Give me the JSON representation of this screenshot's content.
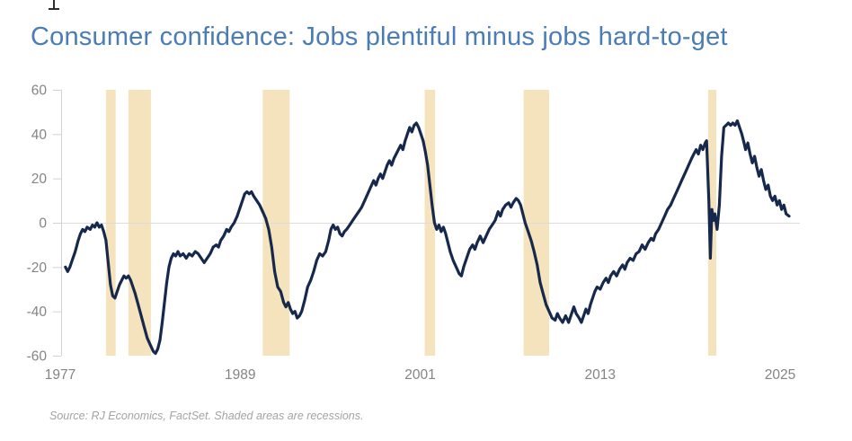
{
  "title": "Consumer confidence: Jobs plentiful minus jobs hard-to-get",
  "source_note": "Source: RJ Economics, FactSet. Shaded areas are recessions.",
  "cursor_artifact": "text-cursor",
  "colors": {
    "title": "#4a7cb5",
    "line": "#16294d",
    "recession_band": "#f4e3bc",
    "axis": "#d2d2d2",
    "zero_line": "#dcdcdc",
    "tick_label": "#828487",
    "source_text": "#a3a3a3",
    "background": "#ffffff"
  },
  "chart_data": {
    "type": "line",
    "title": "Consumer confidence: Jobs plentiful minus jobs hard-to-get",
    "xlabel": "",
    "ylabel": "",
    "x_ticks": [
      1977,
      1989,
      2001,
      2013,
      2025
    ],
    "y_ticks": [
      60,
      40,
      20,
      0,
      -20,
      -40,
      -60
    ],
    "ylim": [
      -60,
      60
    ],
    "xlim": [
      1977,
      2026
    ],
    "grid": "zero-line-only",
    "legend": "none",
    "annotation": "Shaded areas are recessions",
    "recessions": [
      [
        1980.05,
        1980.7
      ],
      [
        1981.55,
        1983.05
      ],
      [
        1990.5,
        1992.3
      ],
      [
        2001.3,
        2002.0
      ],
      [
        2007.9,
        2009.6
      ],
      [
        2020.2,
        2020.75
      ]
    ],
    "series": [
      {
        "name": "Jobs plentiful minus jobs hard-to-get",
        "points": [
          [
            1977.35,
            -20
          ],
          [
            1977.5,
            -22
          ],
          [
            1977.65,
            -20
          ],
          [
            1977.8,
            -17
          ],
          [
            1978.0,
            -13
          ],
          [
            1978.2,
            -8
          ],
          [
            1978.35,
            -5
          ],
          [
            1978.5,
            -3
          ],
          [
            1978.65,
            -4
          ],
          [
            1978.8,
            -2
          ],
          [
            1979.0,
            -3
          ],
          [
            1979.15,
            -1
          ],
          [
            1979.3,
            -2
          ],
          [
            1979.45,
            0
          ],
          [
            1979.6,
            -2
          ],
          [
            1979.75,
            -1
          ],
          [
            1979.9,
            -4
          ],
          [
            1980.05,
            -8
          ],
          [
            1980.2,
            -18
          ],
          [
            1980.35,
            -28
          ],
          [
            1980.5,
            -33
          ],
          [
            1980.65,
            -34
          ],
          [
            1980.8,
            -31
          ],
          [
            1980.95,
            -28
          ],
          [
            1981.1,
            -26
          ],
          [
            1981.25,
            -24
          ],
          [
            1981.4,
            -25
          ],
          [
            1981.55,
            -24
          ],
          [
            1981.7,
            -26
          ],
          [
            1981.85,
            -29
          ],
          [
            1982.0,
            -32
          ],
          [
            1982.2,
            -37
          ],
          [
            1982.4,
            -42
          ],
          [
            1982.6,
            -47
          ],
          [
            1982.8,
            -52
          ],
          [
            1983.0,
            -55
          ],
          [
            1983.2,
            -58
          ],
          [
            1983.35,
            -59
          ],
          [
            1983.5,
            -57
          ],
          [
            1983.65,
            -53
          ],
          [
            1983.8,
            -45
          ],
          [
            1983.95,
            -36
          ],
          [
            1984.1,
            -27
          ],
          [
            1984.25,
            -20
          ],
          [
            1984.4,
            -16
          ],
          [
            1984.55,
            -14
          ],
          [
            1984.7,
            -15
          ],
          [
            1984.85,
            -13
          ],
          [
            1985.0,
            -15
          ],
          [
            1985.2,
            -14
          ],
          [
            1985.4,
            -16
          ],
          [
            1985.6,
            -14
          ],
          [
            1985.8,
            -15
          ],
          [
            1986.0,
            -13
          ],
          [
            1986.2,
            -14
          ],
          [
            1986.4,
            -16
          ],
          [
            1986.6,
            -18
          ],
          [
            1986.8,
            -16
          ],
          [
            1987.0,
            -14
          ],
          [
            1987.2,
            -11
          ],
          [
            1987.4,
            -10
          ],
          [
            1987.55,
            -11
          ],
          [
            1987.7,
            -8
          ],
          [
            1987.9,
            -6
          ],
          [
            1988.1,
            -3
          ],
          [
            1988.25,
            -4
          ],
          [
            1988.4,
            -2
          ],
          [
            1988.6,
            0
          ],
          [
            1988.8,
            3
          ],
          [
            1989.0,
            7
          ],
          [
            1989.15,
            10
          ],
          [
            1989.3,
            13
          ],
          [
            1989.45,
            14
          ],
          [
            1989.6,
            13
          ],
          [
            1989.75,
            14
          ],
          [
            1989.9,
            12
          ],
          [
            1990.1,
            10
          ],
          [
            1990.3,
            8
          ],
          [
            1990.5,
            5
          ],
          [
            1990.7,
            2
          ],
          [
            1990.9,
            -3
          ],
          [
            1991.1,
            -11
          ],
          [
            1991.3,
            -22
          ],
          [
            1991.5,
            -29
          ],
          [
            1991.7,
            -31
          ],
          [
            1991.9,
            -36
          ],
          [
            1992.05,
            -38
          ],
          [
            1992.2,
            -36
          ],
          [
            1992.35,
            -39
          ],
          [
            1992.5,
            -41
          ],
          [
            1992.65,
            -40
          ],
          [
            1992.8,
            -43
          ],
          [
            1992.95,
            -42
          ],
          [
            1993.1,
            -40
          ],
          [
            1993.3,
            -35
          ],
          [
            1993.5,
            -29
          ],
          [
            1993.7,
            -26
          ],
          [
            1993.9,
            -22
          ],
          [
            1994.1,
            -17
          ],
          [
            1994.3,
            -14
          ],
          [
            1994.5,
            -15
          ],
          [
            1994.7,
            -13
          ],
          [
            1994.9,
            -8
          ],
          [
            1995.05,
            -3
          ],
          [
            1995.2,
            -1
          ],
          [
            1995.35,
            -3
          ],
          [
            1995.5,
            -2
          ],
          [
            1995.65,
            -5
          ],
          [
            1995.8,
            -6
          ],
          [
            1995.95,
            -4
          ],
          [
            1996.1,
            -3
          ],
          [
            1996.3,
            -1
          ],
          [
            1996.5,
            1
          ],
          [
            1996.7,
            3
          ],
          [
            1996.9,
            5
          ],
          [
            1997.1,
            7
          ],
          [
            1997.3,
            10
          ],
          [
            1997.5,
            13
          ],
          [
            1997.7,
            16
          ],
          [
            1997.9,
            19
          ],
          [
            1998.05,
            17
          ],
          [
            1998.2,
            20
          ],
          [
            1998.35,
            22
          ],
          [
            1998.5,
            20
          ],
          [
            1998.65,
            23
          ],
          [
            1998.8,
            26
          ],
          [
            1998.95,
            28
          ],
          [
            1999.1,
            26
          ],
          [
            1999.25,
            29
          ],
          [
            1999.4,
            31
          ],
          [
            1999.55,
            33
          ],
          [
            1999.7,
            35
          ],
          [
            1999.85,
            33
          ],
          [
            2000.0,
            37
          ],
          [
            2000.15,
            40
          ],
          [
            2000.3,
            43
          ],
          [
            2000.45,
            41
          ],
          [
            2000.6,
            44
          ],
          [
            2000.75,
            45
          ],
          [
            2000.9,
            43
          ],
          [
            2001.05,
            40
          ],
          [
            2001.2,
            37
          ],
          [
            2001.35,
            32
          ],
          [
            2001.5,
            26
          ],
          [
            2001.65,
            17
          ],
          [
            2001.8,
            8
          ],
          [
            2001.95,
            0
          ],
          [
            2002.1,
            -3
          ],
          [
            2002.25,
            -1
          ],
          [
            2002.4,
            -4
          ],
          [
            2002.55,
            -2
          ],
          [
            2002.7,
            -5
          ],
          [
            2002.85,
            -9
          ],
          [
            2003.0,
            -13
          ],
          [
            2003.2,
            -17
          ],
          [
            2003.4,
            -20
          ],
          [
            2003.6,
            -23
          ],
          [
            2003.75,
            -24
          ],
          [
            2003.9,
            -20
          ],
          [
            2004.1,
            -16
          ],
          [
            2004.3,
            -12
          ],
          [
            2004.5,
            -10
          ],
          [
            2004.65,
            -12
          ],
          [
            2004.8,
            -9
          ],
          [
            2005.0,
            -6
          ],
          [
            2005.2,
            -9
          ],
          [
            2005.4,
            -6
          ],
          [
            2005.6,
            -3
          ],
          [
            2005.8,
            -1
          ],
          [
            2006.0,
            1
          ],
          [
            2006.2,
            5
          ],
          [
            2006.35,
            3
          ],
          [
            2006.5,
            6
          ],
          [
            2006.7,
            8
          ],
          [
            2006.9,
            9
          ],
          [
            2007.05,
            7
          ],
          [
            2007.2,
            9
          ],
          [
            2007.4,
            11
          ],
          [
            2007.55,
            10
          ],
          [
            2007.7,
            8
          ],
          [
            2007.85,
            4
          ],
          [
            2008.0,
            0
          ],
          [
            2008.2,
            -4
          ],
          [
            2008.4,
            -8
          ],
          [
            2008.6,
            -13
          ],
          [
            2008.8,
            -19
          ],
          [
            2009.0,
            -27
          ],
          [
            2009.2,
            -32
          ],
          [
            2009.4,
            -37
          ],
          [
            2009.6,
            -40
          ],
          [
            2009.8,
            -43
          ],
          [
            2010.0,
            -44
          ],
          [
            2010.15,
            -41
          ],
          [
            2010.3,
            -43
          ],
          [
            2010.5,
            -45
          ],
          [
            2010.7,
            -42
          ],
          [
            2010.9,
            -45
          ],
          [
            2011.1,
            -41
          ],
          [
            2011.25,
            -38
          ],
          [
            2011.4,
            -41
          ],
          [
            2011.6,
            -43
          ],
          [
            2011.75,
            -45
          ],
          [
            2011.9,
            -42
          ],
          [
            2012.05,
            -39
          ],
          [
            2012.2,
            -41
          ],
          [
            2012.35,
            -37
          ],
          [
            2012.5,
            -34
          ],
          [
            2012.65,
            -31
          ],
          [
            2012.8,
            -29
          ],
          [
            2013.0,
            -30
          ],
          [
            2013.2,
            -27
          ],
          [
            2013.4,
            -25
          ],
          [
            2013.55,
            -27
          ],
          [
            2013.7,
            -24
          ],
          [
            2013.9,
            -22
          ],
          [
            2014.1,
            -24
          ],
          [
            2014.3,
            -21
          ],
          [
            2014.5,
            -19
          ],
          [
            2014.65,
            -21
          ],
          [
            2014.8,
            -18
          ],
          [
            2015.0,
            -16
          ],
          [
            2015.2,
            -17
          ],
          [
            2015.4,
            -14
          ],
          [
            2015.6,
            -13
          ],
          [
            2015.8,
            -10
          ],
          [
            2016.0,
            -12
          ],
          [
            2016.2,
            -9
          ],
          [
            2016.4,
            -7
          ],
          [
            2016.55,
            -8
          ],
          [
            2016.7,
            -5
          ],
          [
            2016.9,
            -3
          ],
          [
            2017.1,
            0
          ],
          [
            2017.3,
            3
          ],
          [
            2017.5,
            6
          ],
          [
            2017.7,
            8
          ],
          [
            2017.9,
            11
          ],
          [
            2018.1,
            14
          ],
          [
            2018.3,
            17
          ],
          [
            2018.5,
            20
          ],
          [
            2018.7,
            23
          ],
          [
            2018.9,
            26
          ],
          [
            2019.1,
            29
          ],
          [
            2019.25,
            31
          ],
          [
            2019.4,
            33
          ],
          [
            2019.55,
            31
          ],
          [
            2019.7,
            35
          ],
          [
            2019.85,
            33
          ],
          [
            2020.0,
            36
          ],
          [
            2020.1,
            37
          ],
          [
            2020.25,
            10
          ],
          [
            2020.35,
            -16
          ],
          [
            2020.45,
            6
          ],
          [
            2020.55,
            1
          ],
          [
            2020.65,
            4
          ],
          [
            2020.8,
            -3
          ],
          [
            2020.95,
            8
          ],
          [
            2021.1,
            30
          ],
          [
            2021.25,
            43
          ],
          [
            2021.4,
            44
          ],
          [
            2021.55,
            45
          ],
          [
            2021.7,
            44
          ],
          [
            2021.85,
            45
          ],
          [
            2022.0,
            44
          ],
          [
            2022.15,
            46
          ],
          [
            2022.3,
            43
          ],
          [
            2022.45,
            40
          ],
          [
            2022.6,
            36
          ],
          [
            2022.7,
            33
          ],
          [
            2022.85,
            36
          ],
          [
            2023.0,
            31
          ],
          [
            2023.15,
            27
          ],
          [
            2023.3,
            30
          ],
          [
            2023.45,
            25
          ],
          [
            2023.6,
            21
          ],
          [
            2023.75,
            24
          ],
          [
            2023.9,
            19
          ],
          [
            2024.05,
            15
          ],
          [
            2024.2,
            17
          ],
          [
            2024.35,
            12
          ],
          [
            2024.5,
            10
          ],
          [
            2024.65,
            12
          ],
          [
            2024.8,
            8
          ],
          [
            2024.95,
            10
          ],
          [
            2025.1,
            6
          ],
          [
            2025.25,
            8
          ],
          [
            2025.4,
            4
          ],
          [
            2025.6,
            3
          ]
        ]
      }
    ]
  }
}
